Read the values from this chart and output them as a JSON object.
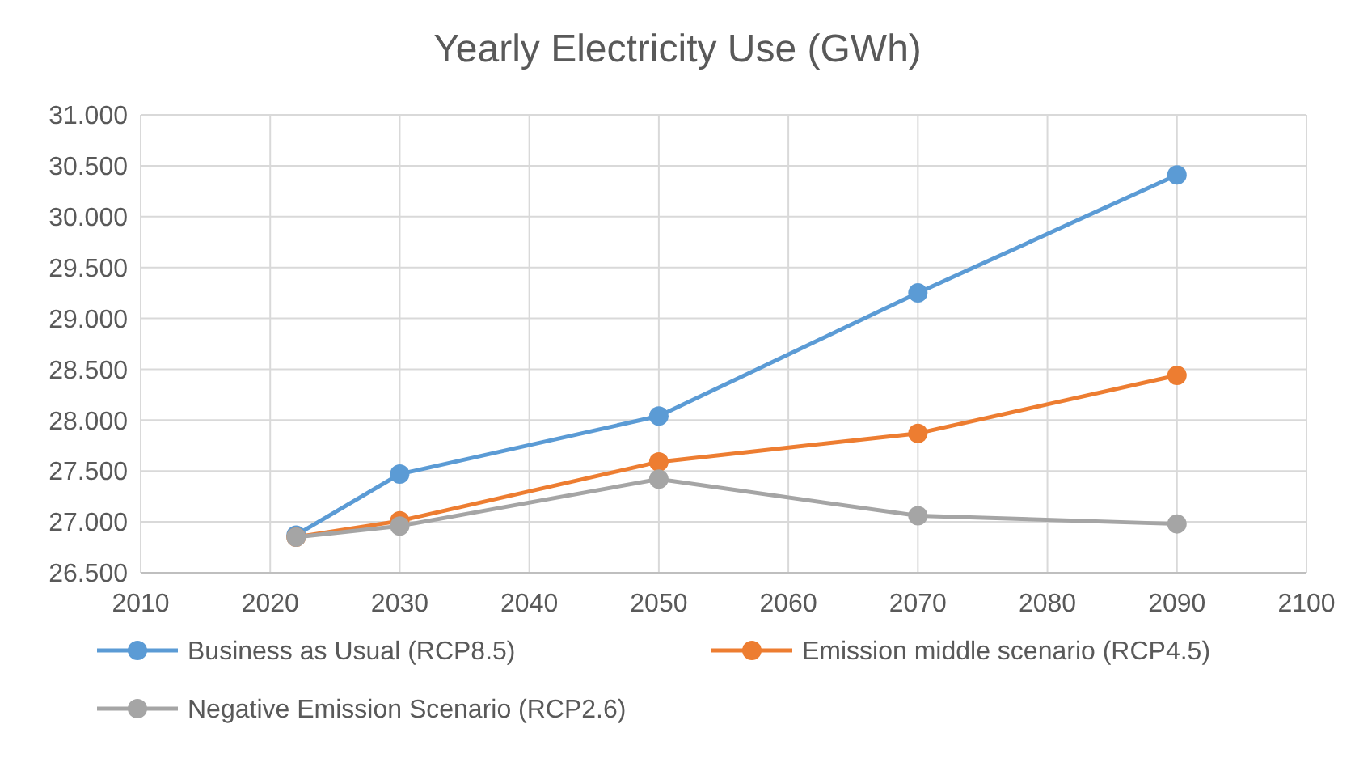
{
  "chart_data": {
    "type": "line",
    "title": "Yearly Electricity Use (GWh)",
    "series": [
      {
        "name": "Business as Usual (RCP8.5)",
        "color": "#5b9bd5",
        "x": [
          2022,
          2030,
          2050,
          2070,
          2090
        ],
        "values": [
          26.87,
          27.47,
          28.04,
          29.25,
          30.41
        ]
      },
      {
        "name": "Emission middle scenario (RCP4.5)",
        "color": "#ed7d31",
        "x": [
          2022,
          2030,
          2050,
          2070,
          2090
        ],
        "values": [
          26.85,
          27.01,
          27.59,
          27.87,
          28.44
        ]
      },
      {
        "name": "Negative Emission Scenario (RCP2.6)",
        "color": "#a5a5a5",
        "x": [
          2022,
          2030,
          2050,
          2070,
          2090
        ],
        "values": [
          26.85,
          26.96,
          27.42,
          27.06,
          26.98
        ]
      }
    ],
    "xlim": [
      2010,
      2100
    ],
    "xticks": [
      2010,
      2020,
      2030,
      2040,
      2050,
      2060,
      2070,
      2080,
      2090,
      2100
    ],
    "ylim": [
      26.5,
      31
    ],
    "yticks": [
      {
        "value": 26.5,
        "label": "26.500"
      },
      {
        "value": 27,
        "label": "27.000"
      },
      {
        "value": 27.5,
        "label": "27.500"
      },
      {
        "value": 28,
        "label": "28.000"
      },
      {
        "value": 28.5,
        "label": "28.500"
      },
      {
        "value": 29,
        "label": "29.000"
      },
      {
        "value": 29.5,
        "label": "29.500"
      },
      {
        "value": 30,
        "label": "30.000"
      },
      {
        "value": 30.5,
        "label": "30.500"
      },
      {
        "value": 31,
        "label": "31.000"
      }
    ],
    "grid": true,
    "legend": "bottom",
    "marker": "circle",
    "line_style": "solid"
  }
}
